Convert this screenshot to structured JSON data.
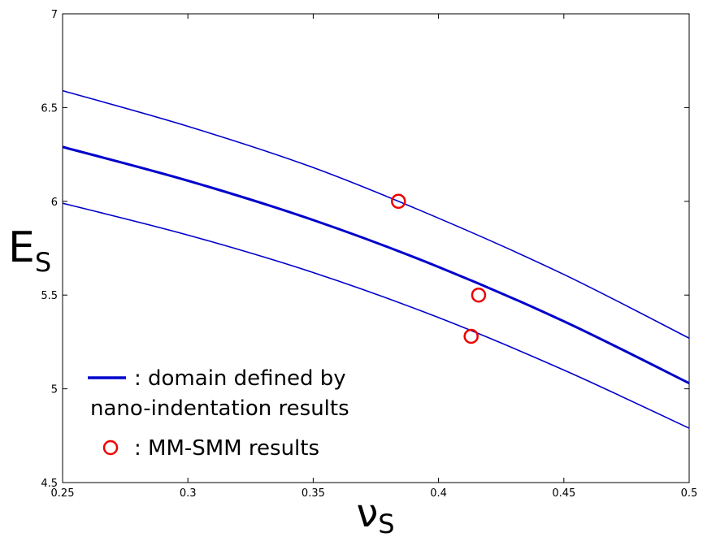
{
  "chart_data": {
    "type": "line",
    "title": "",
    "xlabel": "ν",
    "xlabel_sub": "S",
    "ylabel": "E",
    "ylabel_sub": "S",
    "xlim": [
      0.25,
      0.5
    ],
    "ylim": [
      4.5,
      7
    ],
    "xticks": [
      0.25,
      0.3,
      0.35,
      0.4,
      0.45,
      0.5
    ],
    "xtick_labels": [
      "0.25",
      "0.3",
      "0.35",
      "0.4",
      "0.45",
      "0.5"
    ],
    "yticks": [
      4.5,
      5,
      5.5,
      6,
      6.5,
      7
    ],
    "ytick_labels": [
      "4.5",
      "5",
      "5.5",
      "6",
      "6.5",
      "7"
    ],
    "grid": false,
    "legend_position": "bottom-left",
    "series": [
      {
        "role": "upper-bound",
        "color": "#0000cc",
        "x": [
          0.25,
          0.3,
          0.35,
          0.4,
          0.45,
          0.5
        ],
        "y": [
          6.59,
          6.4,
          6.18,
          5.91,
          5.61,
          5.27
        ]
      },
      {
        "role": "center",
        "color": "#0000cc",
        "x": [
          0.25,
          0.3,
          0.35,
          0.4,
          0.45,
          0.5
        ],
        "y": [
          6.29,
          6.11,
          5.9,
          5.65,
          5.36,
          5.03
        ]
      },
      {
        "role": "lower-bound",
        "color": "#0000cc",
        "x": [
          0.25,
          0.3,
          0.35,
          0.4,
          0.45,
          0.5
        ],
        "y": [
          5.99,
          5.82,
          5.62,
          5.38,
          5.1,
          4.79
        ]
      }
    ],
    "points": {
      "color": "#ee0000",
      "x": [
        0.384,
        0.416,
        0.413
      ],
      "y": [
        6.0,
        5.5,
        5.28
      ]
    },
    "legend": [
      {
        "marker": "line",
        "color": "#0000cc",
        "lines": [
          ": domain defined by",
          "nano-indentation results"
        ]
      },
      {
        "marker": "circle",
        "color": "#ee0000",
        "lines": [
          ": MM-SMM results"
        ]
      }
    ]
  }
}
